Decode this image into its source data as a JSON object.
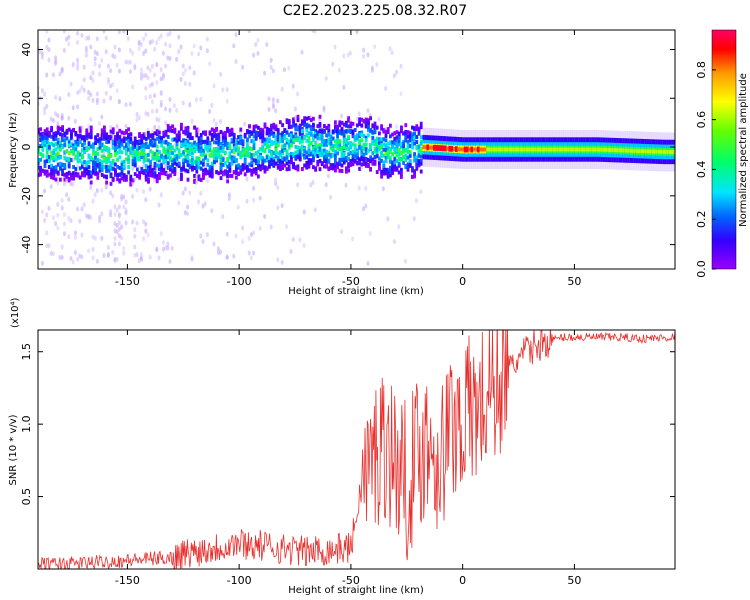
{
  "title": "C2E2.2023.225.08.32.R07",
  "chart_data": [
    {
      "type": "heatmap",
      "xlabel": "Height of straight line (km)",
      "ylabel": "Frequency (Hz)",
      "xlim": [
        -190,
        95
      ],
      "ylim": [
        -50,
        48
      ],
      "x_ticks": [
        -150,
        -100,
        -50,
        0,
        50
      ],
      "y_ticks": [
        -40,
        -20,
        0,
        20,
        40
      ],
      "colorbar": {
        "label": "Normalized spectral amplitude",
        "range": [
          0,
          0.96
        ],
        "ticks": [
          0.0,
          0.2,
          0.4,
          0.6,
          0.8
        ],
        "colormap": "rainbow"
      },
      "description_points": {
        "center_freq_profile": [
          [
            -190,
            -2
          ],
          [
            -170,
            -3
          ],
          [
            -150,
            -4
          ],
          [
            -130,
            -2
          ],
          [
            -110,
            -3
          ],
          [
            -90,
            -1
          ],
          [
            -70,
            2
          ],
          [
            -60,
            0
          ],
          [
            -50,
            1
          ],
          [
            -40,
            2
          ],
          [
            -35,
            -3
          ],
          [
            -25,
            -2
          ],
          [
            -18,
            0
          ],
          [
            0,
            -1
          ],
          [
            30,
            -1
          ],
          [
            60,
            -1
          ],
          [
            90,
            -2
          ]
        ]
      }
    },
    {
      "type": "line",
      "xlabel": "Height of straight line (km)",
      "ylabel": "SNR (10 * v/v)",
      "y_multiplier": "(x10⁴)",
      "xlim": [
        -190,
        95
      ],
      "ylim": [
        0,
        1.65
      ],
      "x_ticks": [
        -150,
        -100,
        -50,
        0,
        50
      ],
      "y_ticks": [
        0.5,
        1.0,
        1.5
      ],
      "color": "#e8312e",
      "series": [
        {
          "x": [
            -190,
            -170,
            -150,
            -130,
            -120,
            -110,
            -100,
            -90,
            -80,
            -70,
            -60,
            -50,
            -45,
            -40,
            -35,
            -30,
            -25,
            -20,
            -15,
            -10,
            -5,
            0,
            5,
            10,
            15,
            20,
            25,
            30,
            35,
            40,
            45,
            50,
            60,
            70,
            80,
            95
          ],
          "values": [
            0.03,
            0.04,
            0.06,
            0.08,
            0.12,
            0.15,
            0.18,
            0.16,
            0.14,
            0.12,
            0.13,
            0.15,
            0.6,
            0.75,
            0.9,
            0.75,
            0.6,
            0.8,
            0.9,
            0.75,
            1.0,
            1.05,
            1.1,
            1.15,
            1.3,
            1.35,
            1.45,
            1.52,
            1.56,
            1.58,
            1.6,
            1.6,
            1.6,
            1.6,
            1.59,
            1.6
          ]
        }
      ]
    }
  ]
}
